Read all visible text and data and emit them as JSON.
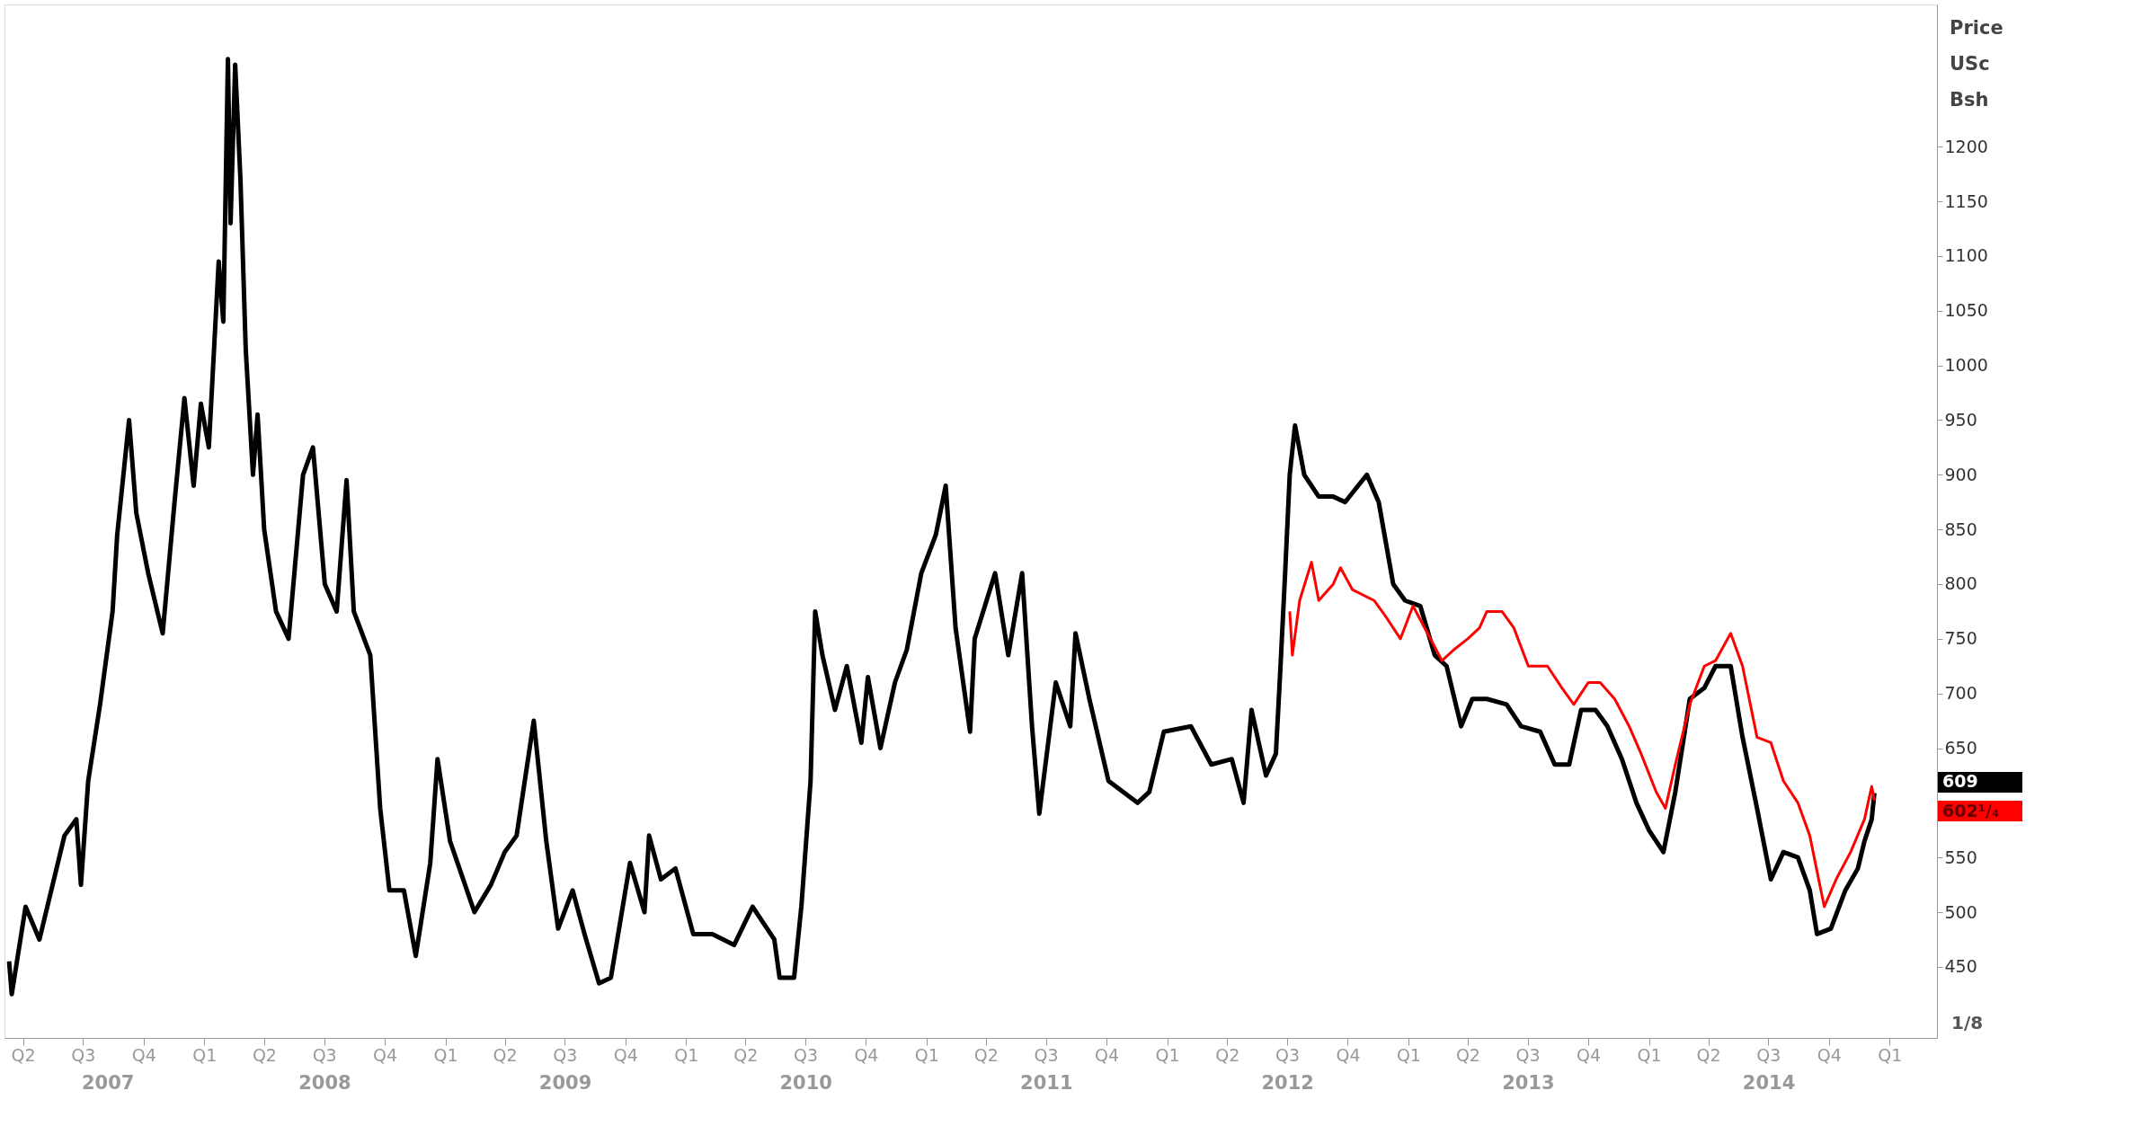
{
  "chart_data": {
    "type": "line",
    "ylabel": "Price USc Bsh",
    "xlim": [
      "2007-03-04",
      "2015-03-14"
    ],
    "ylim": [
      385,
      1330
    ],
    "yticks": [
      450,
      500,
      550,
      650,
      700,
      750,
      800,
      850,
      900,
      950,
      1000,
      1050,
      1100,
      1150,
      1200
    ],
    "xticks": [
      {
        "value": "2007-04-01",
        "label": "Q2"
      },
      {
        "value": "2007-07-01",
        "label": "Q3"
      },
      {
        "value": "2007-10-01",
        "label": "Q4"
      },
      {
        "value": "2008-01-01",
        "label": "Q1"
      },
      {
        "value": "2008-04-01",
        "label": "Q2"
      },
      {
        "value": "2008-07-01",
        "label": "Q3"
      },
      {
        "value": "2008-10-01",
        "label": "Q4"
      },
      {
        "value": "2009-01-01",
        "label": "Q1"
      },
      {
        "value": "2009-04-01",
        "label": "Q2"
      },
      {
        "value": "2009-07-01",
        "label": "Q3"
      },
      {
        "value": "2009-10-01",
        "label": "Q4"
      },
      {
        "value": "2010-01-01",
        "label": "Q1"
      },
      {
        "value": "2010-04-01",
        "label": "Q2"
      },
      {
        "value": "2010-07-01",
        "label": "Q3"
      },
      {
        "value": "2010-10-01",
        "label": "Q4"
      },
      {
        "value": "2011-01-01",
        "label": "Q1"
      },
      {
        "value": "2011-04-01",
        "label": "Q2"
      },
      {
        "value": "2011-07-01",
        "label": "Q3"
      },
      {
        "value": "2011-10-01",
        "label": "Q4"
      },
      {
        "value": "2012-01-01",
        "label": "Q1"
      },
      {
        "value": "2012-04-01",
        "label": "Q2"
      },
      {
        "value": "2012-07-01",
        "label": "Q3"
      },
      {
        "value": "2012-10-01",
        "label": "Q4"
      },
      {
        "value": "2013-01-01",
        "label": "Q1"
      },
      {
        "value": "2013-04-01",
        "label": "Q2"
      },
      {
        "value": "2013-07-01",
        "label": "Q3"
      },
      {
        "value": "2013-10-01",
        "label": "Q4"
      },
      {
        "value": "2014-01-01",
        "label": "Q1"
      },
      {
        "value": "2014-04-01",
        "label": "Q2"
      },
      {
        "value": "2014-07-01",
        "label": "Q3"
      },
      {
        "value": "2014-10-01",
        "label": "Q4"
      },
      {
        "value": "2015-01-01",
        "label": "Q1"
      }
    ],
    "x2lim": [
      "2007-03-04",
      "2015-03-14"
    ],
    "x2ticks": [
      {
        "value": "2007-08-08",
        "label": "2007"
      },
      {
        "value": "2008-07-02",
        "label": "2008"
      },
      {
        "value": "2009-07-02",
        "label": "2009"
      },
      {
        "value": "2010-07-02",
        "label": "2010"
      },
      {
        "value": "2011-07-02",
        "label": "2011"
      },
      {
        "value": "2012-07-02",
        "label": "2012"
      },
      {
        "value": "2013-07-02",
        "label": "2013"
      },
      {
        "value": "2014-07-02",
        "label": "2014"
      }
    ],
    "series": [
      {
        "color": "#000000",
        "x": [
          "2007-03-11",
          "2007-03-15",
          "2007-04-05",
          "2007-04-26",
          "2007-06-03",
          "2007-06-21",
          "2007-06-28",
          "2007-07-09",
          "2007-07-27",
          "2007-08-15",
          "2007-08-22",
          "2007-09-09",
          "2007-09-20",
          "2007-10-08",
          "2007-10-30",
          "2007-11-17",
          "2007-12-02",
          "2007-12-16",
          "2007-12-27",
          "2008-01-08",
          "2008-01-23",
          "2008-01-30",
          "2008-02-06",
          "2008-02-10",
          "2008-02-17",
          "2008-02-25",
          "2008-03-04",
          "2008-03-15",
          "2008-03-22",
          "2008-04-01",
          "2008-04-19",
          "2008-05-08",
          "2008-05-30",
          "2008-06-14",
          "2008-07-02",
          "2008-07-20",
          "2008-08-04",
          "2008-08-15",
          "2008-09-09",
          "2008-09-24",
          "2008-10-08",
          "2008-10-30",
          "2008-11-17",
          "2008-12-09",
          "2008-12-20",
          "2009-01-08",
          "2009-02-14",
          "2009-03-11",
          "2009-04-01",
          "2009-04-19",
          "2009-05-15",
          "2009-06-03",
          "2009-06-21",
          "2009-07-13",
          "2009-07-31",
          "2009-08-22",
          "2009-09-09",
          "2009-09-27",
          "2009-10-08",
          "2009-10-30",
          "2009-11-06",
          "2009-11-24",
          "2009-12-16",
          "2010-01-12",
          "2010-02-10",
          "2010-03-15",
          "2010-04-12",
          "2010-05-15",
          "2010-05-23",
          "2010-06-14",
          "2010-06-25",
          "2010-07-09",
          "2010-07-16",
          "2010-07-27",
          "2010-08-15",
          "2010-09-02",
          "2010-09-24",
          "2010-10-04",
          "2010-10-23",
          "2010-11-14",
          "2010-12-02",
          "2010-12-24",
          "2011-01-15",
          "2011-01-30",
          "2011-02-14",
          "2011-03-08",
          "2011-03-15",
          "2011-04-15",
          "2011-05-05",
          "2011-05-26",
          "2011-06-10",
          "2011-06-21",
          "2011-07-16",
          "2011-08-07",
          "2011-08-15",
          "2011-09-05",
          "2011-10-04",
          "2011-11-17",
          "2011-12-05",
          "2011-12-27",
          "2012-02-06",
          "2012-03-08",
          "2012-04-08",
          "2012-04-26",
          "2012-05-08",
          "2012-05-30",
          "2012-06-14",
          "2012-06-21",
          "2012-06-28",
          "2012-07-05",
          "2012-07-13",
          "2012-07-27",
          "2012-08-18",
          "2012-09-09",
          "2012-09-27",
          "2012-10-30",
          "2012-11-17",
          "2012-12-09",
          "2012-12-27",
          "2013-01-19",
          "2013-02-10",
          "2013-02-28",
          "2013-03-22",
          "2013-04-08",
          "2013-04-30",
          "2013-05-30",
          "2013-06-21",
          "2013-07-20",
          "2013-08-11",
          "2013-09-02",
          "2013-09-20",
          "2013-10-12",
          "2013-10-30",
          "2013-11-21",
          "2013-12-13",
          "2014-01-01",
          "2014-01-23",
          "2014-02-10",
          "2014-03-04",
          "2014-03-26",
          "2014-04-12",
          "2014-05-05",
          "2014-05-23",
          "2014-06-14",
          "2014-07-05",
          "2014-07-24",
          "2014-08-15",
          "2014-09-02",
          "2014-09-13",
          "2014-10-04",
          "2014-10-26",
          "2014-11-14",
          "2014-11-24",
          "2014-12-05",
          "2014-12-09"
        ],
        "values": [
          455,
          425,
          505,
          475,
          570,
          585,
          525,
          620,
          690,
          775,
          845,
          950,
          865,
          810,
          755,
          875,
          970,
          890,
          965,
          925,
          1095,
          1040,
          1280,
          1130,
          1275,
          1170,
          1015,
          900,
          955,
          850,
          775,
          750,
          900,
          925,
          800,
          775,
          895,
          775,
          735,
          595,
          520,
          520,
          460,
          545,
          640,
          565,
          500,
          525,
          555,
          570,
          675,
          565,
          485,
          520,
          480,
          435,
          440,
          505,
          545,
          500,
          570,
          530,
          540,
          480,
          480,
          470,
          505,
          475,
          440,
          440,
          505,
          620,
          775,
          735,
          685,
          725,
          655,
          715,
          650,
          710,
          740,
          810,
          845,
          890,
          760,
          665,
          750,
          810,
          735,
          810,
          670,
          590,
          710,
          670,
          755,
          695,
          620,
          600,
          610,
          665,
          670,
          635,
          640,
          600,
          685,
          625,
          645,
          725,
          810,
          900,
          945,
          900,
          880,
          880,
          875,
          900,
          875,
          800,
          785,
          780,
          735,
          725,
          670,
          695,
          695,
          690,
          670,
          665,
          635,
          635,
          685,
          685,
          670,
          640,
          600,
          575,
          555,
          610,
          695,
          705,
          725,
          725,
          660,
          595,
          530,
          555,
          550,
          520,
          480,
          485,
          520,
          540,
          565,
          585,
          609
        ]
      },
      {
        "color": "#ff0000",
        "x": [
          "2012-07-05",
          "2012-07-09",
          "2012-07-20",
          "2012-08-07",
          "2012-08-18",
          "2012-09-09",
          "2012-09-20",
          "2012-10-08",
          "2012-11-10",
          "2012-11-28",
          "2012-12-20",
          "2013-01-08",
          "2013-01-30",
          "2013-02-21",
          "2013-03-11",
          "2013-04-01",
          "2013-04-19",
          "2013-04-30",
          "2013-05-23",
          "2013-06-10",
          "2013-07-02",
          "2013-07-31",
          "2013-08-22",
          "2013-09-09",
          "2013-10-01",
          "2013-10-19",
          "2013-11-10",
          "2013-12-02",
          "2013-12-20",
          "2014-01-12",
          "2014-01-26",
          "2014-02-10",
          "2014-03-04",
          "2014-03-26",
          "2014-04-12",
          "2014-05-05",
          "2014-05-23",
          "2014-06-14",
          "2014-07-05",
          "2014-07-24",
          "2014-08-15",
          "2014-09-02",
          "2014-09-24",
          "2014-10-12",
          "2014-11-03",
          "2014-11-24",
          "2014-12-05",
          "2014-12-09"
        ],
        "values": [
          775,
          735,
          785,
          820,
          785,
          800,
          815,
          795,
          785,
          770,
          750,
          780,
          755,
          730,
          740,
          750,
          760,
          775,
          775,
          760,
          725,
          725,
          705,
          690,
          710,
          710,
          695,
          670,
          645,
          610,
          595,
          635,
          690,
          725,
          730,
          755,
          725,
          660,
          655,
          620,
          600,
          570,
          505,
          530,
          555,
          585,
          615,
          602.25
        ]
      }
    ],
    "annotations": [
      "609",
      "602¹/₄",
      "1/8"
    ]
  }
}
